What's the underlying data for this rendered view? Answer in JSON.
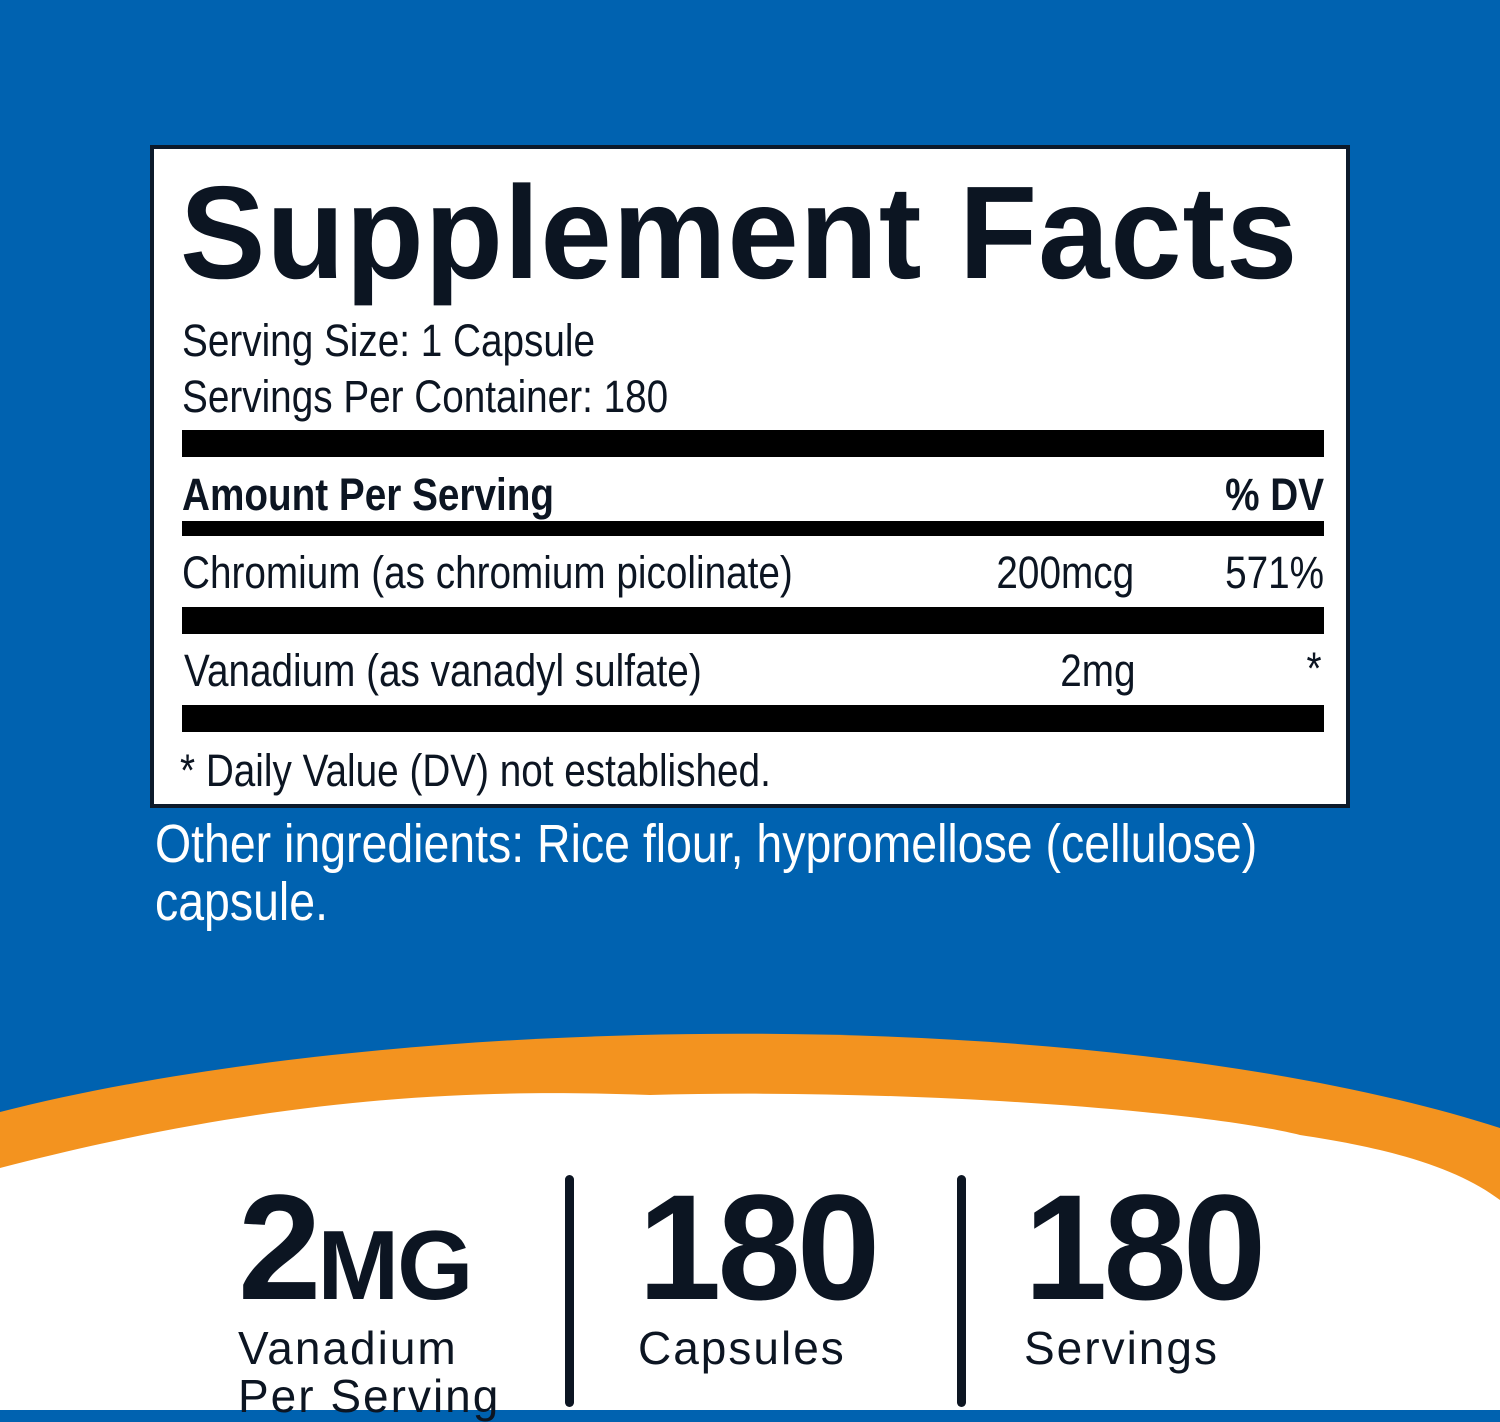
{
  "colors": {
    "background_blue": "#0062b0",
    "accent_orange": "#f3931f",
    "text_dark": "#0c1522"
  },
  "facts": {
    "title": "Supplement Facts",
    "serving_size": "Serving Size: 1 Capsule",
    "servings_per_container": "Servings Per Container: 180",
    "header_left": "Amount Per Serving",
    "header_right": "% DV",
    "rows": [
      {
        "name": "Chromium (as chromium picolinate)",
        "amount": "200mcg",
        "dv": "571%"
      },
      {
        "name": "Vanadium (as vanadyl sulfate)",
        "amount": "2mg",
        "dv": "*"
      }
    ],
    "footnote": "* Daily Value (DV) not established."
  },
  "other_ingredients": {
    "line1": "Other ingredients: Rice flour, hypromellose (cellulose)",
    "line2": "capsule."
  },
  "highlights": [
    {
      "value": "2",
      "unit": "MG",
      "label1": "Vanadium",
      "label2": "Per Serving"
    },
    {
      "value": "180",
      "label1": "Capsules"
    },
    {
      "value": "180",
      "label1": "Servings"
    }
  ]
}
